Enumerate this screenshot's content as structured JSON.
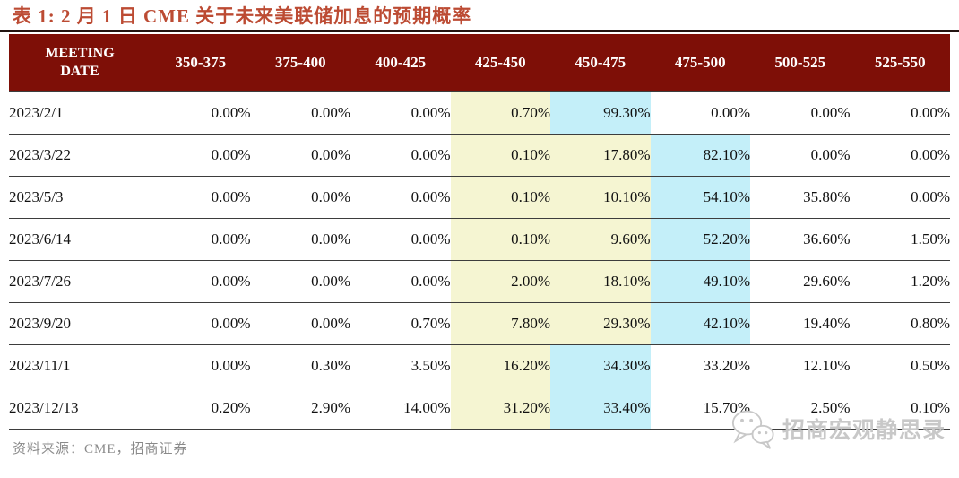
{
  "title": "表 1: 2 月 1 日 CME 关于未来美联储加息的预期概率",
  "table": {
    "header": {
      "date_col": "MEETING DATE",
      "rate_cols": [
        "350-375",
        "375-400",
        "400-425",
        "425-450",
        "450-475",
        "475-500",
        "500-525",
        "525-550"
      ]
    },
    "rows": [
      {
        "date": "2023/2/1",
        "values": [
          "0.00%",
          "0.00%",
          "0.00%",
          "0.70%",
          "99.30%",
          "0.00%",
          "0.00%",
          "0.00%"
        ],
        "cell_colors": [
          "none",
          "none",
          "none",
          "yellow",
          "cyan",
          "none",
          "none",
          "none"
        ]
      },
      {
        "date": "2023/3/22",
        "values": [
          "0.00%",
          "0.00%",
          "0.00%",
          "0.10%",
          "17.80%",
          "82.10%",
          "0.00%",
          "0.00%"
        ],
        "cell_colors": [
          "none",
          "none",
          "none",
          "yellow",
          "yellow",
          "cyan",
          "none",
          "none"
        ]
      },
      {
        "date": "2023/5/3",
        "values": [
          "0.00%",
          "0.00%",
          "0.00%",
          "0.10%",
          "10.10%",
          "54.10%",
          "35.80%",
          "0.00%"
        ],
        "cell_colors": [
          "none",
          "none",
          "none",
          "yellow",
          "yellow",
          "cyan",
          "none",
          "none"
        ]
      },
      {
        "date": "2023/6/14",
        "values": [
          "0.00%",
          "0.00%",
          "0.00%",
          "0.10%",
          "9.60%",
          "52.20%",
          "36.60%",
          "1.50%"
        ],
        "cell_colors": [
          "none",
          "none",
          "none",
          "yellow",
          "yellow",
          "cyan",
          "none",
          "none"
        ]
      },
      {
        "date": "2023/7/26",
        "values": [
          "0.00%",
          "0.00%",
          "0.00%",
          "2.00%",
          "18.10%",
          "49.10%",
          "29.60%",
          "1.20%"
        ],
        "cell_colors": [
          "none",
          "none",
          "none",
          "yellow",
          "yellow",
          "cyan",
          "none",
          "none"
        ]
      },
      {
        "date": "2023/9/20",
        "values": [
          "0.00%",
          "0.00%",
          "0.70%",
          "7.80%",
          "29.30%",
          "42.10%",
          "19.40%",
          "0.80%"
        ],
        "cell_colors": [
          "none",
          "none",
          "none",
          "yellow",
          "yellow",
          "cyan",
          "none",
          "none"
        ]
      },
      {
        "date": "2023/11/1",
        "values": [
          "0.00%",
          "0.30%",
          "3.50%",
          "16.20%",
          "34.30%",
          "33.20%",
          "12.10%",
          "0.50%"
        ],
        "cell_colors": [
          "none",
          "none",
          "none",
          "yellow",
          "cyan",
          "none",
          "none",
          "none"
        ]
      },
      {
        "date": "2023/12/13",
        "values": [
          "0.20%",
          "2.90%",
          "14.00%",
          "31.20%",
          "33.40%",
          "15.70%",
          "2.50%",
          "0.10%"
        ],
        "cell_colors": [
          "none",
          "none",
          "none",
          "yellow",
          "cyan",
          "none",
          "none",
          "none"
        ]
      }
    ]
  },
  "footer": {
    "source": "资料来源：CME，招商证券"
  },
  "watermark": {
    "label": "招商宏观静思录",
    "icon": "wechat-icon"
  },
  "colors": {
    "title_text": "#BC4B33",
    "header_bg": "#7E0F07",
    "header_text": "#FFFFFF",
    "highlight_yellow": "#F5F5D2",
    "highlight_cyan": "#C4EFF9",
    "row_border": "#3D3D3D",
    "source_text": "#8A8A8A",
    "watermark_text": "#C8C8C8"
  }
}
